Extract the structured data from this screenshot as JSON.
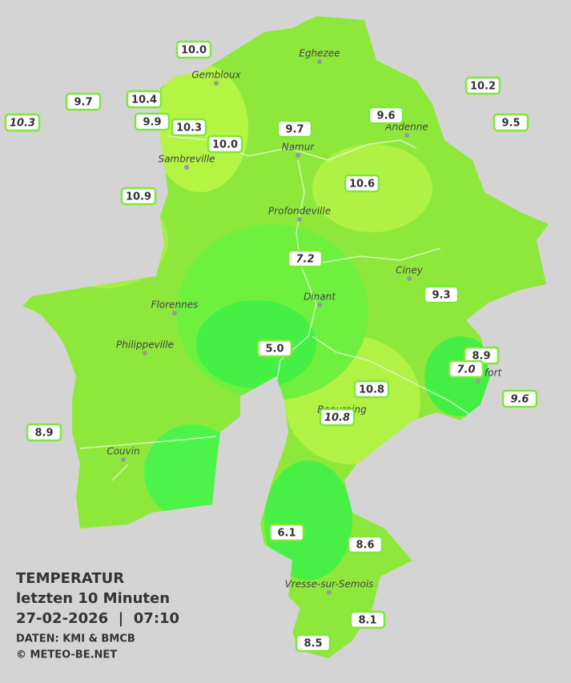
{
  "legend": {
    "title": "TEMPERATUR",
    "subtitle": "letzten 10 Minuten",
    "datetime": "27-02-2026  |  07:10",
    "sources": "DATEN: KMI & BMCB",
    "copyright": "© METEO-BE.NET"
  },
  "cities": [
    "Eghezee",
    "Gembloux",
    "Andenne",
    "Namur",
    "Sambreville",
    "Profondeville",
    "Ciney",
    "Dinant",
    "Florennes",
    "Philippeville",
    "Rochefort",
    "Beauraing",
    "Couvin",
    "Vresse-sur-Semois"
  ],
  "stations": [
    {
      "value": "10.0"
    },
    {
      "value": "9.7"
    },
    {
      "value": "10.4"
    },
    {
      "value": "10.3",
      "italic": true
    },
    {
      "value": "9.9"
    },
    {
      "value": "10.3"
    },
    {
      "value": "10.0"
    },
    {
      "value": "9.7"
    },
    {
      "value": "9.6"
    },
    {
      "value": "10.2"
    },
    {
      "value": "9.5"
    },
    {
      "value": "10.9"
    },
    {
      "value": "10.6"
    },
    {
      "value": "7.2",
      "italic": true
    },
    {
      "value": "9.3"
    },
    {
      "value": "5.0"
    },
    {
      "value": "8.9"
    },
    {
      "value": "7.0",
      "italic": true
    },
    {
      "value": "10.8"
    },
    {
      "value": "10.8",
      "italic": true
    },
    {
      "value": "9.6",
      "italic": true
    },
    {
      "value": "8.9"
    },
    {
      "value": "6.1"
    },
    {
      "value": "8.6"
    },
    {
      "value": "8.1"
    },
    {
      "value": "8.5"
    }
  ]
}
